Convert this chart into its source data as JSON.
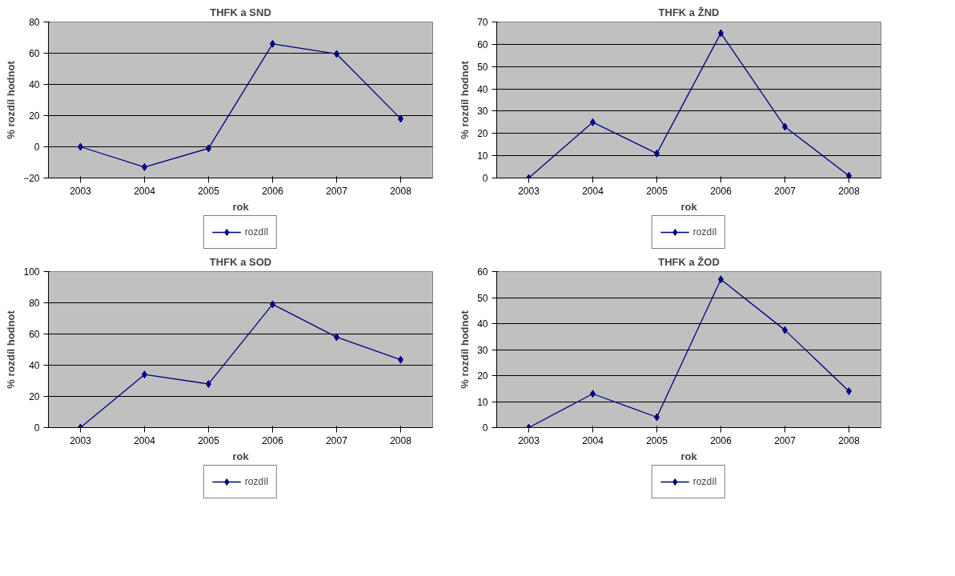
{
  "chart_data": [
    {
      "type": "line",
      "title": "THFK a SND",
      "xlabel": "rok",
      "ylabel": "% rozdíl hodnot",
      "categories": [
        "2003",
        "2004",
        "2005",
        "2006",
        "2007",
        "2008"
      ],
      "series": [
        {
          "name": "rozdíl",
          "color": "#000080",
          "values": [
            0,
            -13,
            -1,
            66,
            59.5,
            18
          ]
        }
      ],
      "ylim": [
        -20,
        80
      ],
      "yticks": [
        -20,
        0,
        20,
        40,
        60,
        80
      ],
      "grid": "y",
      "legend": "bottom",
      "marker": "diamond",
      "line_style": "solid"
    },
    {
      "type": "line",
      "title": "THFK a ŽND",
      "xlabel": "rok",
      "ylabel": "% rozdíl hodnot",
      "categories": [
        "2003",
        "2004",
        "2005",
        "2006",
        "2007",
        "2008"
      ],
      "series": [
        {
          "name": "rozdíl",
          "color": "#000080",
          "values": [
            0,
            25,
            11,
            65,
            23,
            1
          ]
        }
      ],
      "ylim": [
        0,
        70
      ],
      "yticks": [
        0,
        10,
        20,
        30,
        40,
        50,
        60,
        70
      ],
      "grid": "y",
      "legend": "bottom",
      "marker": "diamond",
      "line_style": "solid"
    },
    {
      "type": "line",
      "title": "THFK a SOD",
      "xlabel": "rok",
      "ylabel": "% rozdíl hodnot",
      "categories": [
        "2003",
        "2004",
        "2005",
        "2006",
        "2007",
        "2008"
      ],
      "series": [
        {
          "name": "rozdíl",
          "color": "#000080",
          "values": [
            0,
            34,
            28,
            79,
            58,
            43.5
          ]
        }
      ],
      "ylim": [
        0,
        100
      ],
      "yticks": [
        0,
        20,
        40,
        60,
        80,
        100
      ],
      "grid": "y",
      "legend": "bottom",
      "marker": "diamond",
      "line_style": "solid"
    },
    {
      "type": "line",
      "title": "THFK a ŽOD",
      "xlabel": "rok",
      "ylabel": "% rozdíl hodnot",
      "categories": [
        "2003",
        "2004",
        "2005",
        "2006",
        "2007",
        "2008"
      ],
      "series": [
        {
          "name": "rozdíl",
          "color": "#000080",
          "values": [
            0,
            13,
            4,
            57,
            37.5,
            14
          ]
        }
      ],
      "ylim": [
        0,
        60
      ],
      "yticks": [
        0,
        10,
        20,
        30,
        40,
        50,
        60
      ],
      "grid": "y",
      "legend": "bottom",
      "marker": "diamond",
      "line_style": "solid"
    }
  ]
}
